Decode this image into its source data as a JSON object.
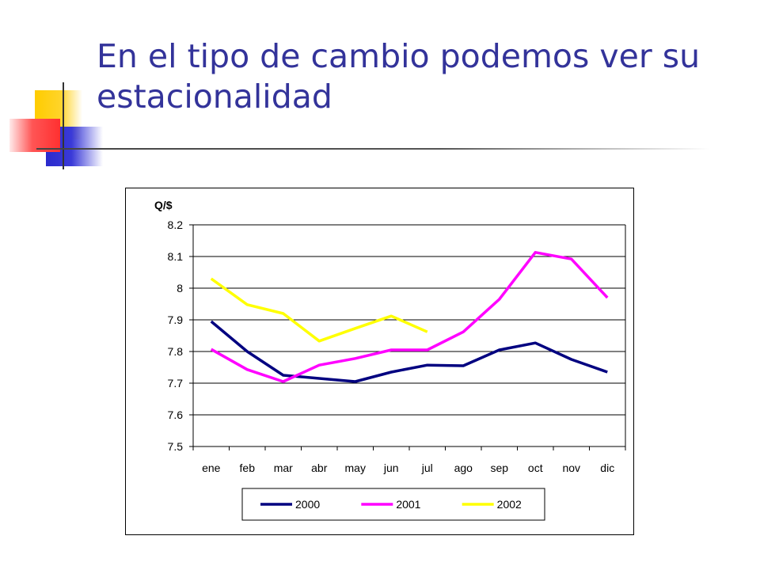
{
  "slide": {
    "title": "En el tipo de cambio podemos ver su estacionalidad"
  },
  "colors": {
    "title": "#33339a",
    "series_2000": "#000080",
    "series_2001": "#ff00ff",
    "series_2002": "#ffff00"
  },
  "chart_data": {
    "type": "line",
    "title": "",
    "xlabel": "",
    "ylabel": "Q/$",
    "ylim": [
      7.5,
      8.2
    ],
    "yticks": [
      "7.5",
      "7.6",
      "7.7",
      "7.8",
      "7.9",
      "8",
      "8.1",
      "8.2"
    ],
    "grid": true,
    "legend_position": "bottom",
    "categories": [
      "ene",
      "feb",
      "mar",
      "abr",
      "may",
      "jun",
      "jul",
      "ago",
      "sep",
      "oct",
      "nov",
      "dic"
    ],
    "series": [
      {
        "name": "2000",
        "color": "#000080",
        "values": [
          7.895,
          7.8,
          7.725,
          7.715,
          7.705,
          7.735,
          7.757,
          7.755,
          7.805,
          7.827,
          7.775,
          7.735
        ]
      },
      {
        "name": "2001",
        "color": "#ff00ff",
        "values": [
          7.807,
          7.743,
          7.705,
          7.757,
          7.778,
          7.805,
          7.805,
          7.862,
          7.965,
          8.113,
          8.092,
          7.97
        ]
      },
      {
        "name": "2002",
        "color": "#ffff00",
        "values": [
          8.03,
          7.948,
          7.92,
          7.833,
          7.873,
          7.912,
          7.862,
          null,
          null,
          null,
          null,
          null
        ]
      }
    ]
  }
}
